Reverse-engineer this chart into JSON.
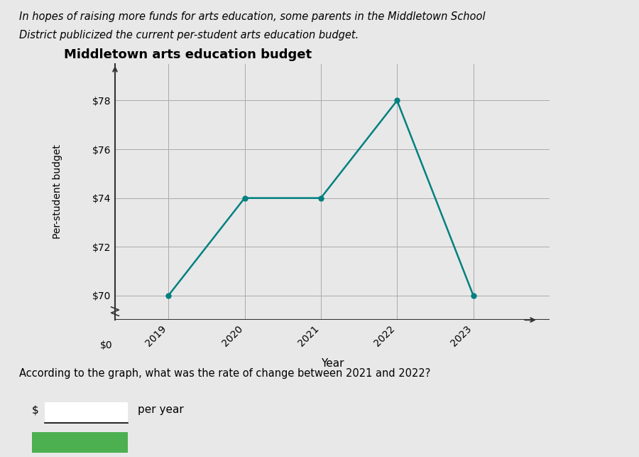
{
  "title": "Middletown arts education budget",
  "xlabel": "Year",
  "ylabel": "Per-student budget",
  "years": [
    2019,
    2020,
    2021,
    2022,
    2023
  ],
  "values": [
    70,
    74,
    74,
    78,
    70
  ],
  "line_color": "#008080",
  "marker_color": "#008080",
  "yticks": [
    70,
    72,
    74,
    76,
    78
  ],
  "ytick_labels": [
    "$70",
    "$72",
    "$74",
    "$76",
    "$78"
  ],
  "y0_label": "$0",
  "ylim_plot": [
    69.5,
    79.5
  ],
  "background_color": "#e8e8e8",
  "paragraph_text_line1": "In hopes of raising more funds for arts education, some parents in the Middletown School",
  "paragraph_text_line2": "District publicized the current per-student arts education budget.",
  "question_text": "According to the graph, what was the rate of change between 2021 and 2022?",
  "answer_label": "per year",
  "grid_color": "#aaaaaa",
  "axis_color": "#333333"
}
